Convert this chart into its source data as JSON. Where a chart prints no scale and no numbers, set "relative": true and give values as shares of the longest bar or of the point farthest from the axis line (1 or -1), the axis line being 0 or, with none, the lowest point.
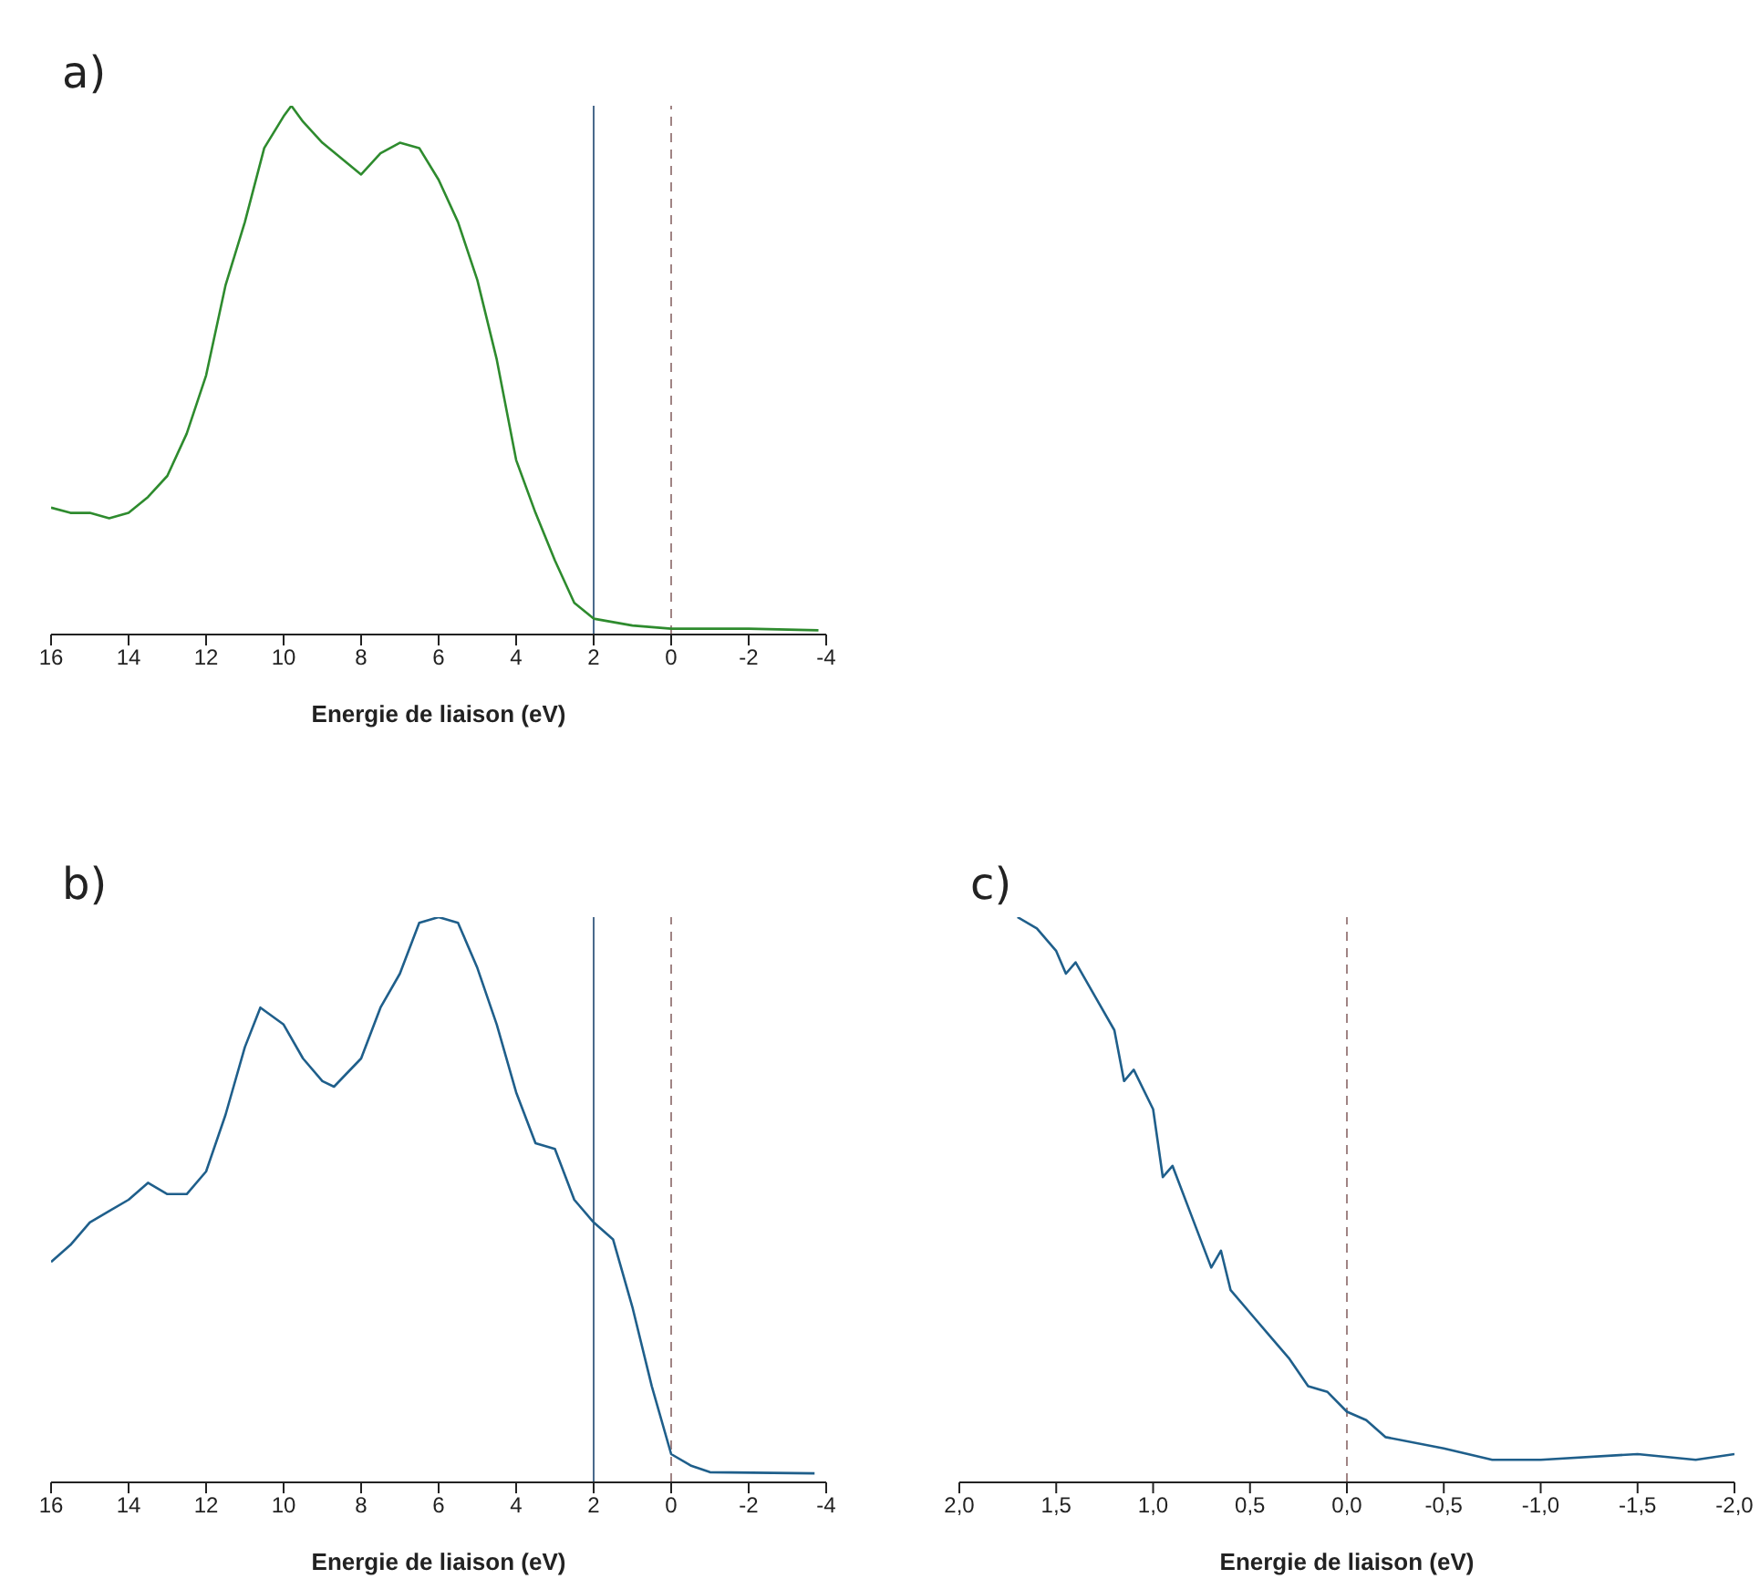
{
  "chart_data": [
    {
      "type": "line",
      "relative": true,
      "xlabel": "Energie de liaison (eV)",
      "annotations": [
        "a)"
      ],
      "tick_labels": "x",
      "xlim": [
        16,
        -4
      ],
      "xticks": [
        16,
        14,
        12,
        10,
        8,
        6,
        4,
        2,
        0,
        -2,
        -4
      ],
      "ref_lines": [
        {
          "axis": "x",
          "value": 2,
          "color": "#4a6a8c",
          "line_style": "solid"
        },
        {
          "axis": "x",
          "value": 0,
          "color": "#a08484",
          "line_style": "dashed"
        }
      ],
      "series": [
        {
          "color": "#2e8b2e",
          "x": [
            16,
            15.5,
            15,
            14.5,
            14,
            13.5,
            13,
            12.5,
            12,
            11.5,
            11,
            10.5,
            10,
            9.8,
            9.5,
            9,
            8.5,
            8,
            7.5,
            7,
            6.5,
            6,
            5.5,
            5,
            4.5,
            4,
            3.5,
            3,
            2.5,
            2,
            1,
            0,
            -2,
            -3.8
          ],
          "values": [
            0.24,
            0.23,
            0.23,
            0.22,
            0.23,
            0.26,
            0.3,
            0.38,
            0.49,
            0.66,
            0.78,
            0.92,
            0.98,
            1,
            0.97,
            0.93,
            0.9,
            0.87,
            0.91,
            0.93,
            0.92,
            0.86,
            0.78,
            0.67,
            0.52,
            0.33,
            0.23,
            0.14,
            0.06,
            0.03,
            0.017,
            0.011,
            0.011,
            0.008
          ]
        }
      ]
    },
    {
      "type": "line",
      "relative": true,
      "xlabel": "Energie de liaison (eV)",
      "annotations": [
        "b)"
      ],
      "tick_labels": "x",
      "xlim": [
        16,
        -4
      ],
      "xticks": [
        16,
        14,
        12,
        10,
        8,
        6,
        4,
        2,
        0,
        -2,
        -4
      ],
      "ref_lines": [
        {
          "axis": "x",
          "value": 2,
          "color": "#4a6a8c",
          "line_style": "solid"
        },
        {
          "axis": "x",
          "value": 0,
          "color": "#a08484",
          "line_style": "dashed"
        }
      ],
      "series": [
        {
          "color": "#1f5f8b",
          "x": [
            16,
            15.5,
            15,
            14.5,
            14,
            13.5,
            13,
            12.5,
            12,
            11.5,
            11,
            10.6,
            10,
            9.5,
            9,
            8.7,
            8,
            7.5,
            7,
            6.5,
            6,
            5.5,
            5,
            4.5,
            4,
            3.5,
            3,
            2.5,
            2,
            1.5,
            1,
            0.5,
            0,
            -0.5,
            -1,
            -3.7
          ],
          "values": [
            0.39,
            0.42,
            0.46,
            0.48,
            0.5,
            0.53,
            0.51,
            0.51,
            0.55,
            0.65,
            0.77,
            0.84,
            0.81,
            0.75,
            0.71,
            0.7,
            0.75,
            0.84,
            0.9,
            0.99,
            1,
            0.99,
            0.91,
            0.81,
            0.69,
            0.6,
            0.59,
            0.5,
            0.46,
            0.43,
            0.31,
            0.17,
            0.05,
            0.03,
            0.018,
            0.016
          ]
        }
      ]
    },
    {
      "type": "line",
      "relative": true,
      "xlabel": "Energie de liaison (eV)",
      "annotations": [
        "c)"
      ],
      "tick_labels": "x",
      "xlim": [
        2,
        -2
      ],
      "xticks": [
        {
          "value": 2,
          "label": "2,0"
        },
        {
          "value": 1.5,
          "label": "1,5"
        },
        {
          "value": 1,
          "label": "1,0"
        },
        {
          "value": 0.5,
          "label": "0,5"
        },
        {
          "value": 0,
          "label": "0,0"
        },
        {
          "value": -0.5,
          "label": "-0,5"
        },
        {
          "value": -1,
          "label": "-1,0"
        },
        {
          "value": -1.5,
          "label": "-1,5"
        },
        {
          "value": -2,
          "label": "-2,0"
        }
      ],
      "ref_lines": [
        {
          "axis": "x",
          "value": 0,
          "color": "#a08484",
          "line_style": "dashed"
        }
      ],
      "series": [
        {
          "color": "#1f5f8b",
          "x": [
            1.7,
            1.6,
            1.5,
            1.45,
            1.4,
            1.3,
            1.2,
            1.15,
            1.1,
            1,
            0.95,
            0.9,
            0.8,
            0.7,
            0.65,
            0.6,
            0.5,
            0.4,
            0.3,
            0.2,
            0.1,
            0,
            -0.1,
            -0.2,
            -0.5,
            -0.75,
            -1,
            -1.5,
            -1.8,
            -2
          ],
          "values": [
            1,
            0.98,
            0.94,
            0.9,
            0.92,
            0.86,
            0.8,
            0.71,
            0.73,
            0.66,
            0.54,
            0.56,
            0.47,
            0.38,
            0.41,
            0.34,
            0.3,
            0.26,
            0.22,
            0.17,
            0.16,
            0.125,
            0.11,
            0.08,
            0.06,
            0.04,
            0.04,
            0.05,
            0.04,
            0.05
          ]
        }
      ]
    }
  ]
}
